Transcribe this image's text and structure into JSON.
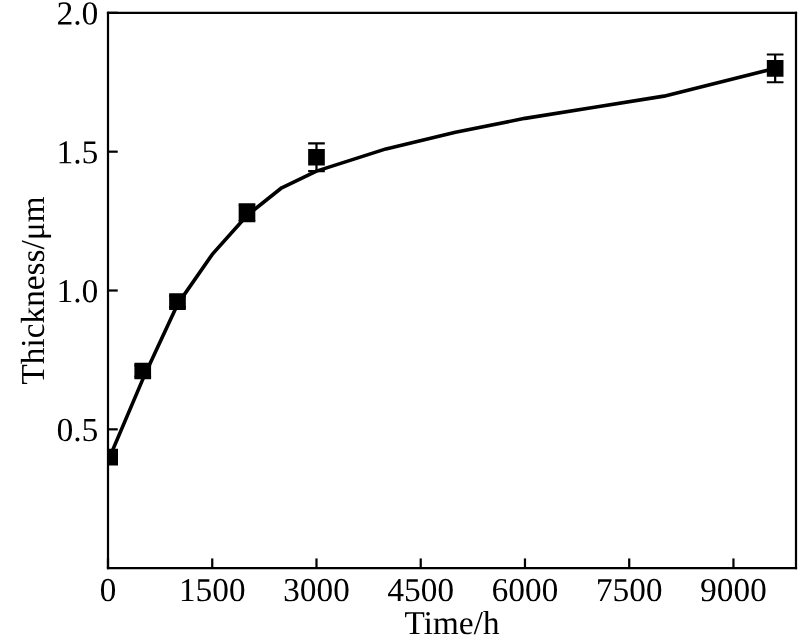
{
  "chart_data": {
    "type": "scatter",
    "xlabel": "Time/h",
    "ylabel": "Thickness/μm",
    "xlim": [
      0,
      9900
    ],
    "ylim": [
      0,
      2.0
    ],
    "xticks": [
      0,
      1500,
      3000,
      4500,
      6000,
      7500,
      9000
    ],
    "yticks": [
      {
        "value": 0.5,
        "label": "0.5"
      },
      {
        "value": 1.0,
        "label": "1.0"
      },
      {
        "value": 1.5,
        "label": "1.5"
      },
      {
        "value": 2.0,
        "label": "2.0"
      }
    ],
    "grid": false,
    "legend": false,
    "series": [
      {
        "color": "#000000",
        "marker": "square",
        "x": [
          24,
          500,
          1000,
          2000,
          3000,
          9600
        ],
        "values": [
          0.4,
          0.71,
          0.96,
          1.28,
          1.48,
          1.8
        ],
        "errors": [
          0.02,
          0.02,
          0.02,
          0.03,
          0.05,
          0.05
        ]
      },
      {
        "type": "line",
        "color": "#000000",
        "marker": "none",
        "line_style": "solid",
        "x": [
          24,
          500,
          1000,
          1500,
          2000,
          2500,
          3000,
          4000,
          5000,
          6000,
          7000,
          8000,
          9600
        ],
        "values": [
          0.4,
          0.68,
          0.95,
          1.13,
          1.27,
          1.37,
          1.43,
          1.51,
          1.57,
          1.62,
          1.66,
          1.7,
          1.8
        ]
      }
    ]
  }
}
